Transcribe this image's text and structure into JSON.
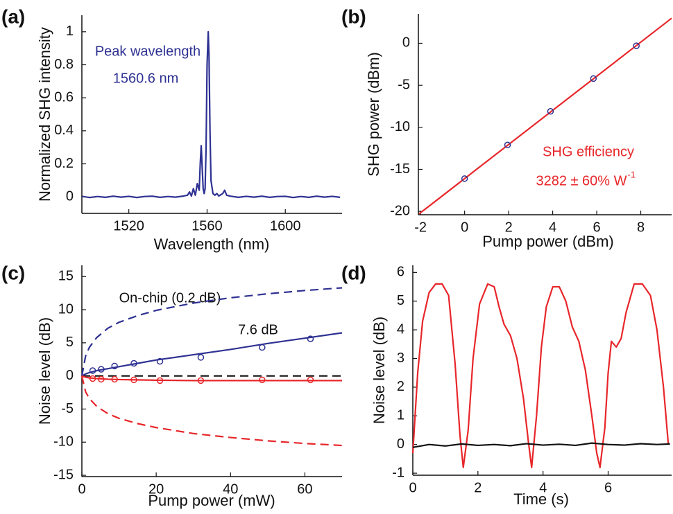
{
  "chart_data": [
    {
      "type": "line",
      "label": "(a)",
      "xlabel": "Wavelength (nm)",
      "ylabel": "Normalized SHG intensity",
      "annotations": [
        "Peak wavelength",
        "1560.6 nm"
      ],
      "annotation_color": "#2e3192",
      "xlim": [
        1496,
        1629
      ],
      "ylim": [
        -0.1,
        1.1
      ],
      "xticks": [
        1520,
        1560,
        1600
      ],
      "yticks": [
        0,
        0.2,
        0.4,
        0.6,
        0.8,
        1
      ],
      "series": [
        {
          "color": "#2e3192",
          "style": "solid",
          "x": [
            1496,
            1500,
            1504,
            1508,
            1512,
            1516,
            1520,
            1524,
            1528,
            1532,
            1536,
            1540,
            1544,
            1548,
            1550,
            1551,
            1552,
            1553,
            1554,
            1555,
            1556,
            1556.5,
            1557,
            1557.5,
            1558,
            1558.5,
            1559,
            1559.5,
            1560,
            1560.6,
            1561,
            1561.5,
            1562,
            1563,
            1564,
            1565,
            1566,
            1568,
            1569,
            1570,
            1572,
            1576,
            1580,
            1584,
            1588,
            1592,
            1596,
            1600,
            1604,
            1608,
            1612,
            1616,
            1620,
            1624,
            1628
          ],
          "values": [
            0.003,
            -0.004,
            0.002,
            -0.003,
            0.004,
            -0.002,
            0.003,
            -0.004,
            0.002,
            0.004,
            -0.003,
            0.002,
            -0.002,
            0.005,
            0.01,
            0.03,
            0.005,
            0.05,
            0.01,
            0.08,
            0.04,
            0.2,
            0.31,
            0.18,
            0.05,
            0.02,
            0.05,
            0.3,
            0.8,
            1.0,
            0.85,
            0.4,
            0.1,
            0.02,
            0.01,
            0.02,
            0.005,
            0.02,
            0.04,
            0.01,
            0.004,
            -0.003,
            0.003,
            -0.002,
            0.004,
            -0.003,
            0.002,
            0.003,
            -0.004,
            0.002,
            -0.003,
            0.004,
            -0.002,
            0.003,
            -0.003
          ]
        }
      ]
    },
    {
      "type": "line",
      "label": "(b)",
      "xlabel": "Pump power (dBm)",
      "ylabel": "SHG power (dBm)",
      "annotations": [
        "SHG efficiency",
        "3282 ± 60% W"
      ],
      "annotation_exponent": "-1",
      "annotation_color": "#e8262a",
      "xlim": [
        -2.1,
        9.4
      ],
      "ylim": [
        -20.4,
        3.5
      ],
      "xticks": [
        -2,
        0,
        2,
        4,
        6,
        8
      ],
      "yticks": [
        -20,
        -15,
        -10,
        -5,
        0
      ],
      "series": [
        {
          "color": "#e8262a",
          "style": "solid",
          "x": [
            -2.07,
            9.4
          ],
          "values": [
            -20.3,
            2.98
          ]
        },
        {
          "color": "#2e3192",
          "style": "markers",
          "x": [
            0,
            1.95,
            3.9,
            5.85,
            7.8
          ],
          "values": [
            -16.1,
            -12.1,
            -8.1,
            -4.2,
            -0.3
          ]
        }
      ]
    },
    {
      "type": "line",
      "label": "(c)",
      "xlabel": "Pump power (mW)",
      "ylabel": "Noise level (dB)",
      "annotations": [
        "On-chip (0.2 dB)",
        "7.6 dB"
      ],
      "annotation_color": "#111111",
      "xlim": [
        0,
        70
      ],
      "ylim": [
        -15.2,
        16.7
      ],
      "xticks": [
        0,
        20,
        40,
        60
      ],
      "yticks": [
        -15,
        -10,
        -5,
        0,
        5,
        10,
        15
      ],
      "series": [
        {
          "color": "#2e3192",
          "style": "dashed",
          "x": [
            0,
            1,
            2,
            4,
            7,
            10,
            15,
            20,
            30,
            40,
            50,
            60,
            70
          ],
          "values": [
            0,
            3.0,
            4.3,
            5.8,
            7.2,
            8.1,
            9.1,
            9.9,
            11.0,
            11.8,
            12.4,
            12.9,
            13.3
          ]
        },
        {
          "color": "#e8262a",
          "style": "dashed",
          "x": [
            0,
            1,
            2,
            4,
            7,
            10,
            15,
            20,
            30,
            40,
            50,
            60,
            70
          ],
          "values": [
            0,
            -2.4,
            -3.4,
            -4.6,
            -5.7,
            -6.4,
            -7.2,
            -7.8,
            -8.7,
            -9.3,
            -9.8,
            -10.2,
            -10.5
          ]
        },
        {
          "color": "#111111",
          "style": "dashed",
          "x": [
            0,
            70
          ],
          "values": [
            0,
            0
          ]
        },
        {
          "color": "#2e3192",
          "style": "solid",
          "x": [
            0,
            1,
            2,
            4,
            7,
            10,
            15,
            20,
            30,
            40,
            50,
            60,
            70
          ],
          "values": [
            0,
            0.3,
            0.5,
            0.8,
            1.1,
            1.4,
            1.9,
            2.4,
            3.2,
            4.0,
            4.9,
            5.7,
            6.5
          ]
        },
        {
          "color": "#e8262a",
          "style": "solid",
          "x": [
            0,
            1,
            2,
            4,
            7,
            10,
            15,
            20,
            30,
            40,
            50,
            60,
            70
          ],
          "values": [
            0,
            -0.2,
            -0.3,
            -0.4,
            -0.5,
            -0.55,
            -0.6,
            -0.65,
            -0.7,
            -0.7,
            -0.7,
            -0.7,
            -0.7
          ]
        },
        {
          "color": "#2e3192",
          "style": "markers",
          "x": [
            2.9,
            5.2,
            8.8,
            14,
            21,
            32,
            48.5,
            61.5
          ],
          "values": [
            0.8,
            1.0,
            1.5,
            1.9,
            2.2,
            2.8,
            4.3,
            5.6
          ]
        },
        {
          "color": "#e8262a",
          "style": "markers",
          "x": [
            2.9,
            5.2,
            8.8,
            14,
            21,
            32,
            48.5,
            61.5
          ],
          "values": [
            -0.4,
            -0.5,
            -0.5,
            -0.6,
            -0.7,
            -0.7,
            -0.6,
            -0.6
          ]
        }
      ]
    },
    {
      "type": "line",
      "label": "(d)",
      "xlabel": "Time (s)",
      "ylabel": "Noise level (dB)",
      "xlim": [
        0,
        7.95
      ],
      "ylim": [
        -1.07,
        6.25
      ],
      "xticks": [
        0,
        2,
        4,
        6
      ],
      "yticks": [
        -1,
        0,
        1,
        2,
        3,
        4,
        5,
        6
      ],
      "series": [
        {
          "color": "#e8262a",
          "style": "solid",
          "x": [
            0,
            0.15,
            0.3,
            0.5,
            0.7,
            0.9,
            1.1,
            1.3,
            1.45,
            1.55,
            1.7,
            1.85,
            2.05,
            2.3,
            2.5,
            2.65,
            2.8,
            3.0,
            3.2,
            3.4,
            3.55,
            3.65,
            3.8,
            3.95,
            4.1,
            4.3,
            4.5,
            4.7,
            4.9,
            5.1,
            5.3,
            5.5,
            5.65,
            5.75,
            5.9,
            6.0,
            6.1,
            6.25,
            6.4,
            6.55,
            6.8,
            7.05,
            7.3,
            7.5,
            7.7,
            7.85
          ],
          "values": [
            -0.3,
            2.5,
            4.3,
            5.3,
            5.6,
            5.6,
            5.2,
            2.8,
            0.3,
            -0.8,
            0.5,
            3.0,
            4.9,
            5.6,
            5.5,
            4.8,
            4.2,
            3.8,
            3.0,
            1.6,
            0.1,
            -0.8,
            1.0,
            3.4,
            4.8,
            5.5,
            5.5,
            5.0,
            4.1,
            3.6,
            2.6,
            1.0,
            -0.3,
            -0.8,
            0.6,
            2.5,
            3.6,
            3.4,
            3.7,
            4.6,
            5.6,
            5.6,
            5.2,
            4.0,
            2.0,
            0.0
          ]
        },
        {
          "color": "#111111",
          "style": "solid",
          "x": [
            0,
            0.5,
            1,
            1.5,
            2,
            2.5,
            3,
            3.5,
            4,
            4.5,
            5,
            5.5,
            6,
            6.5,
            7,
            7.5,
            7.9
          ],
          "values": [
            -0.1,
            0.0,
            -0.05,
            0.02,
            -0.03,
            0.0,
            -0.04,
            0.03,
            -0.02,
            0.01,
            -0.03,
            0.05,
            0.0,
            -0.02,
            0.03,
            0.0,
            0.02
          ]
        }
      ]
    }
  ]
}
